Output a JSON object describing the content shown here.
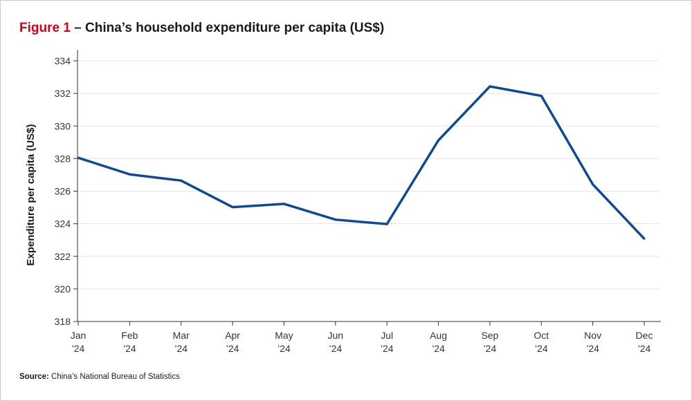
{
  "header": {
    "figure_label": "Figure 1",
    "title_text": " – China’s household expenditure per capita (US$)"
  },
  "source": {
    "label": "Source:",
    "text": " China’s National Bureau of Statistics"
  },
  "colors": {
    "figure_label": "#d0021b",
    "line": "#0d4a93",
    "grid": "#e4e4e4"
  },
  "chart_data": {
    "type": "line",
    "title": "Figure 1 – China’s household expenditure per capita (US$)",
    "xlabel": "",
    "ylabel": "Expenditure per capita (US$)",
    "ylim": [
      318,
      334
    ],
    "yticks": [
      318,
      320,
      322,
      324,
      326,
      328,
      330,
      332,
      334
    ],
    "grid": true,
    "categories": [
      [
        "Jan",
        "’24"
      ],
      [
        "Feb",
        "’24"
      ],
      [
        "Mar",
        "’24"
      ],
      [
        "Apr",
        "’24"
      ],
      [
        "May",
        "’24"
      ],
      [
        "Jun",
        "’24"
      ],
      [
        "Jul",
        "’24"
      ],
      [
        "Aug",
        "’24"
      ],
      [
        "Sep",
        "’24"
      ],
      [
        "Oct",
        "’24"
      ],
      [
        "Nov",
        "’24"
      ],
      [
        "Dec",
        "’24"
      ]
    ],
    "series": [
      {
        "values": [
          328.05,
          327.03,
          326.65,
          325.02,
          325.22,
          324.25,
          323.98,
          329.12,
          332.43,
          331.85,
          326.42,
          323.08
        ]
      }
    ]
  }
}
